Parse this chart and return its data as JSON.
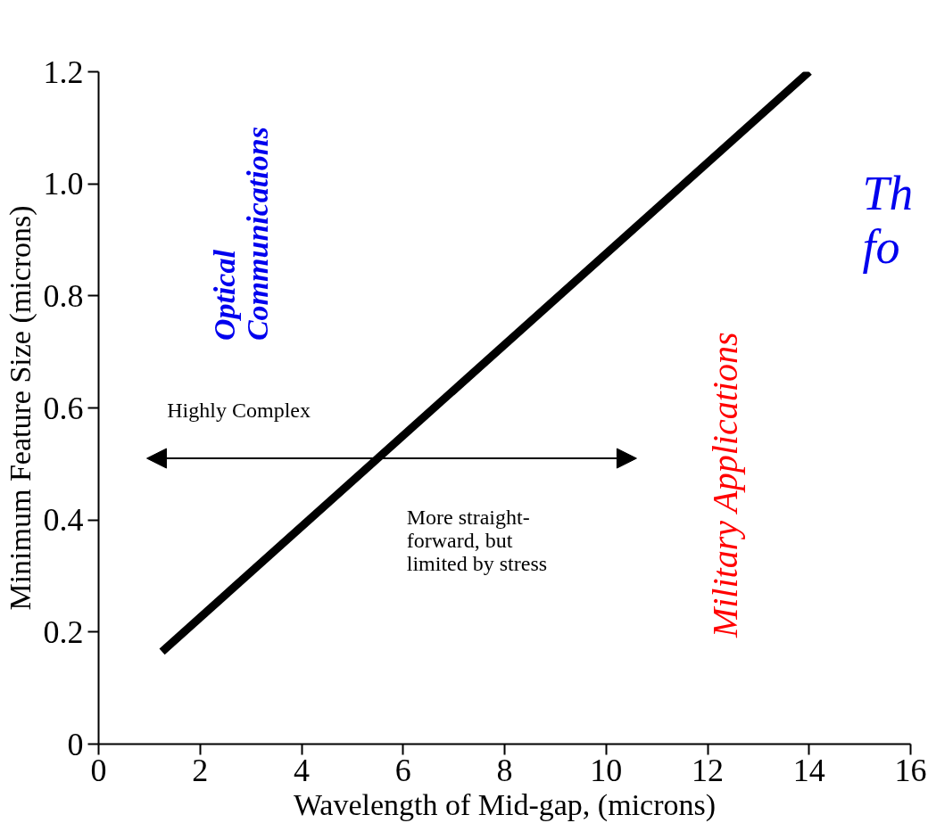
{
  "chart_data": {
    "type": "line",
    "xlabel": "Wavelength of Mid-gap, (microns)",
    "ylabel": "Minimum Feature Size (microns)",
    "xlim": [
      0,
      16
    ],
    "ylim": [
      0,
      1.2
    ],
    "xticks": [
      0,
      2,
      4,
      6,
      8,
      10,
      12,
      14,
      16
    ],
    "yticks": [
      0,
      0.2,
      0.4,
      0.6,
      0.8,
      {
        "value": 1,
        "label": "1.0"
      },
      1.2
    ],
    "grid": false,
    "series": [
      {
        "color": "#000000",
        "x": [
          1.25,
          14
        ],
        "values": [
          0.165,
          1.2
        ]
      }
    ],
    "annotations": [
      "Optical\nCommunications",
      "Military Applications",
      "Highly Complex",
      "More straight-\nforward, but\nlimited by stress",
      "Th\nfo"
    ]
  }
}
